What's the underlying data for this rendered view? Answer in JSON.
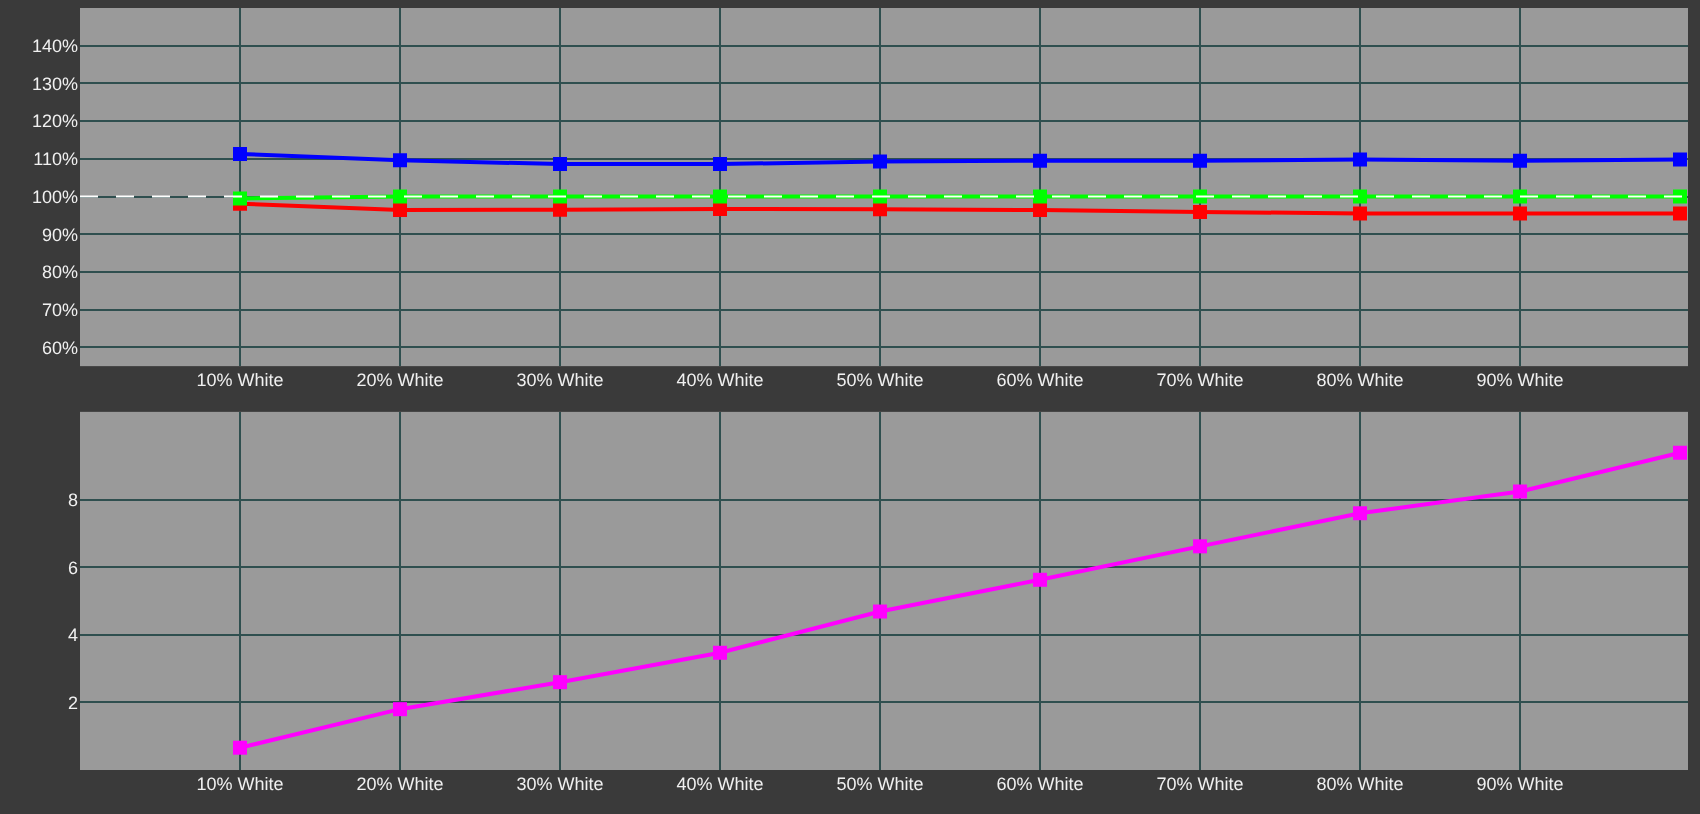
{
  "chart_data": [
    {
      "type": "line",
      "categories": [
        "10% White",
        "20% White",
        "30% White",
        "40% White",
        "50% White",
        "60% White",
        "70% White",
        "80% White",
        "90% White",
        null
      ],
      "series": [
        {
          "color": "#0000ff",
          "values": [
            111.3,
            109.6,
            108.6,
            108.6,
            109.3,
            109.5,
            109.5,
            109.8,
            109.5,
            109.8
          ]
        },
        {
          "color": "#ff0000",
          "values": [
            98.1,
            96.4,
            96.5,
            96.7,
            96.6,
            96.4,
            95.9,
            95.5,
            95.5,
            95.5
          ]
        },
        {
          "color": "#00ff00",
          "values": [
            99.5,
            100,
            100,
            100,
            100,
            100,
            100,
            100,
            100,
            100
          ]
        }
      ],
      "ylim": [
        55,
        150
      ],
      "yticks": [
        {
          "value": 60,
          "label": "60%"
        },
        {
          "value": 70,
          "label": "70%"
        },
        {
          "value": 80,
          "label": "80%"
        },
        {
          "value": 90,
          "label": "90%"
        },
        {
          "value": 100,
          "label": "100%"
        },
        {
          "value": 110,
          "label": "110%"
        },
        {
          "value": 120,
          "label": "120%"
        },
        {
          "value": 130,
          "label": "130%"
        },
        {
          "value": 140,
          "label": "140%"
        }
      ],
      "ref_lines": [
        {
          "axis": "y",
          "value": 100,
          "color": "#ffffff",
          "line_style": "dashed"
        }
      ],
      "grid": true,
      "marker": "square",
      "line_style": "solid"
    },
    {
      "type": "line",
      "categories": [
        "10% White",
        "20% White",
        "30% White",
        "40% White",
        "50% White",
        "60% White",
        "70% White",
        "80% White",
        "90% White",
        null
      ],
      "series": [
        {
          "color": "#ff00ff",
          "values": [
            0.66,
            1.8,
            2.6,
            3.47,
            4.69,
            5.63,
            6.62,
            7.6,
            8.24,
            9.39
          ]
        }
      ],
      "ylim": [
        0,
        10.6
      ],
      "yticks": [
        2,
        4,
        6,
        8
      ],
      "grid": true,
      "marker": "square",
      "line_style": "solid"
    }
  ]
}
